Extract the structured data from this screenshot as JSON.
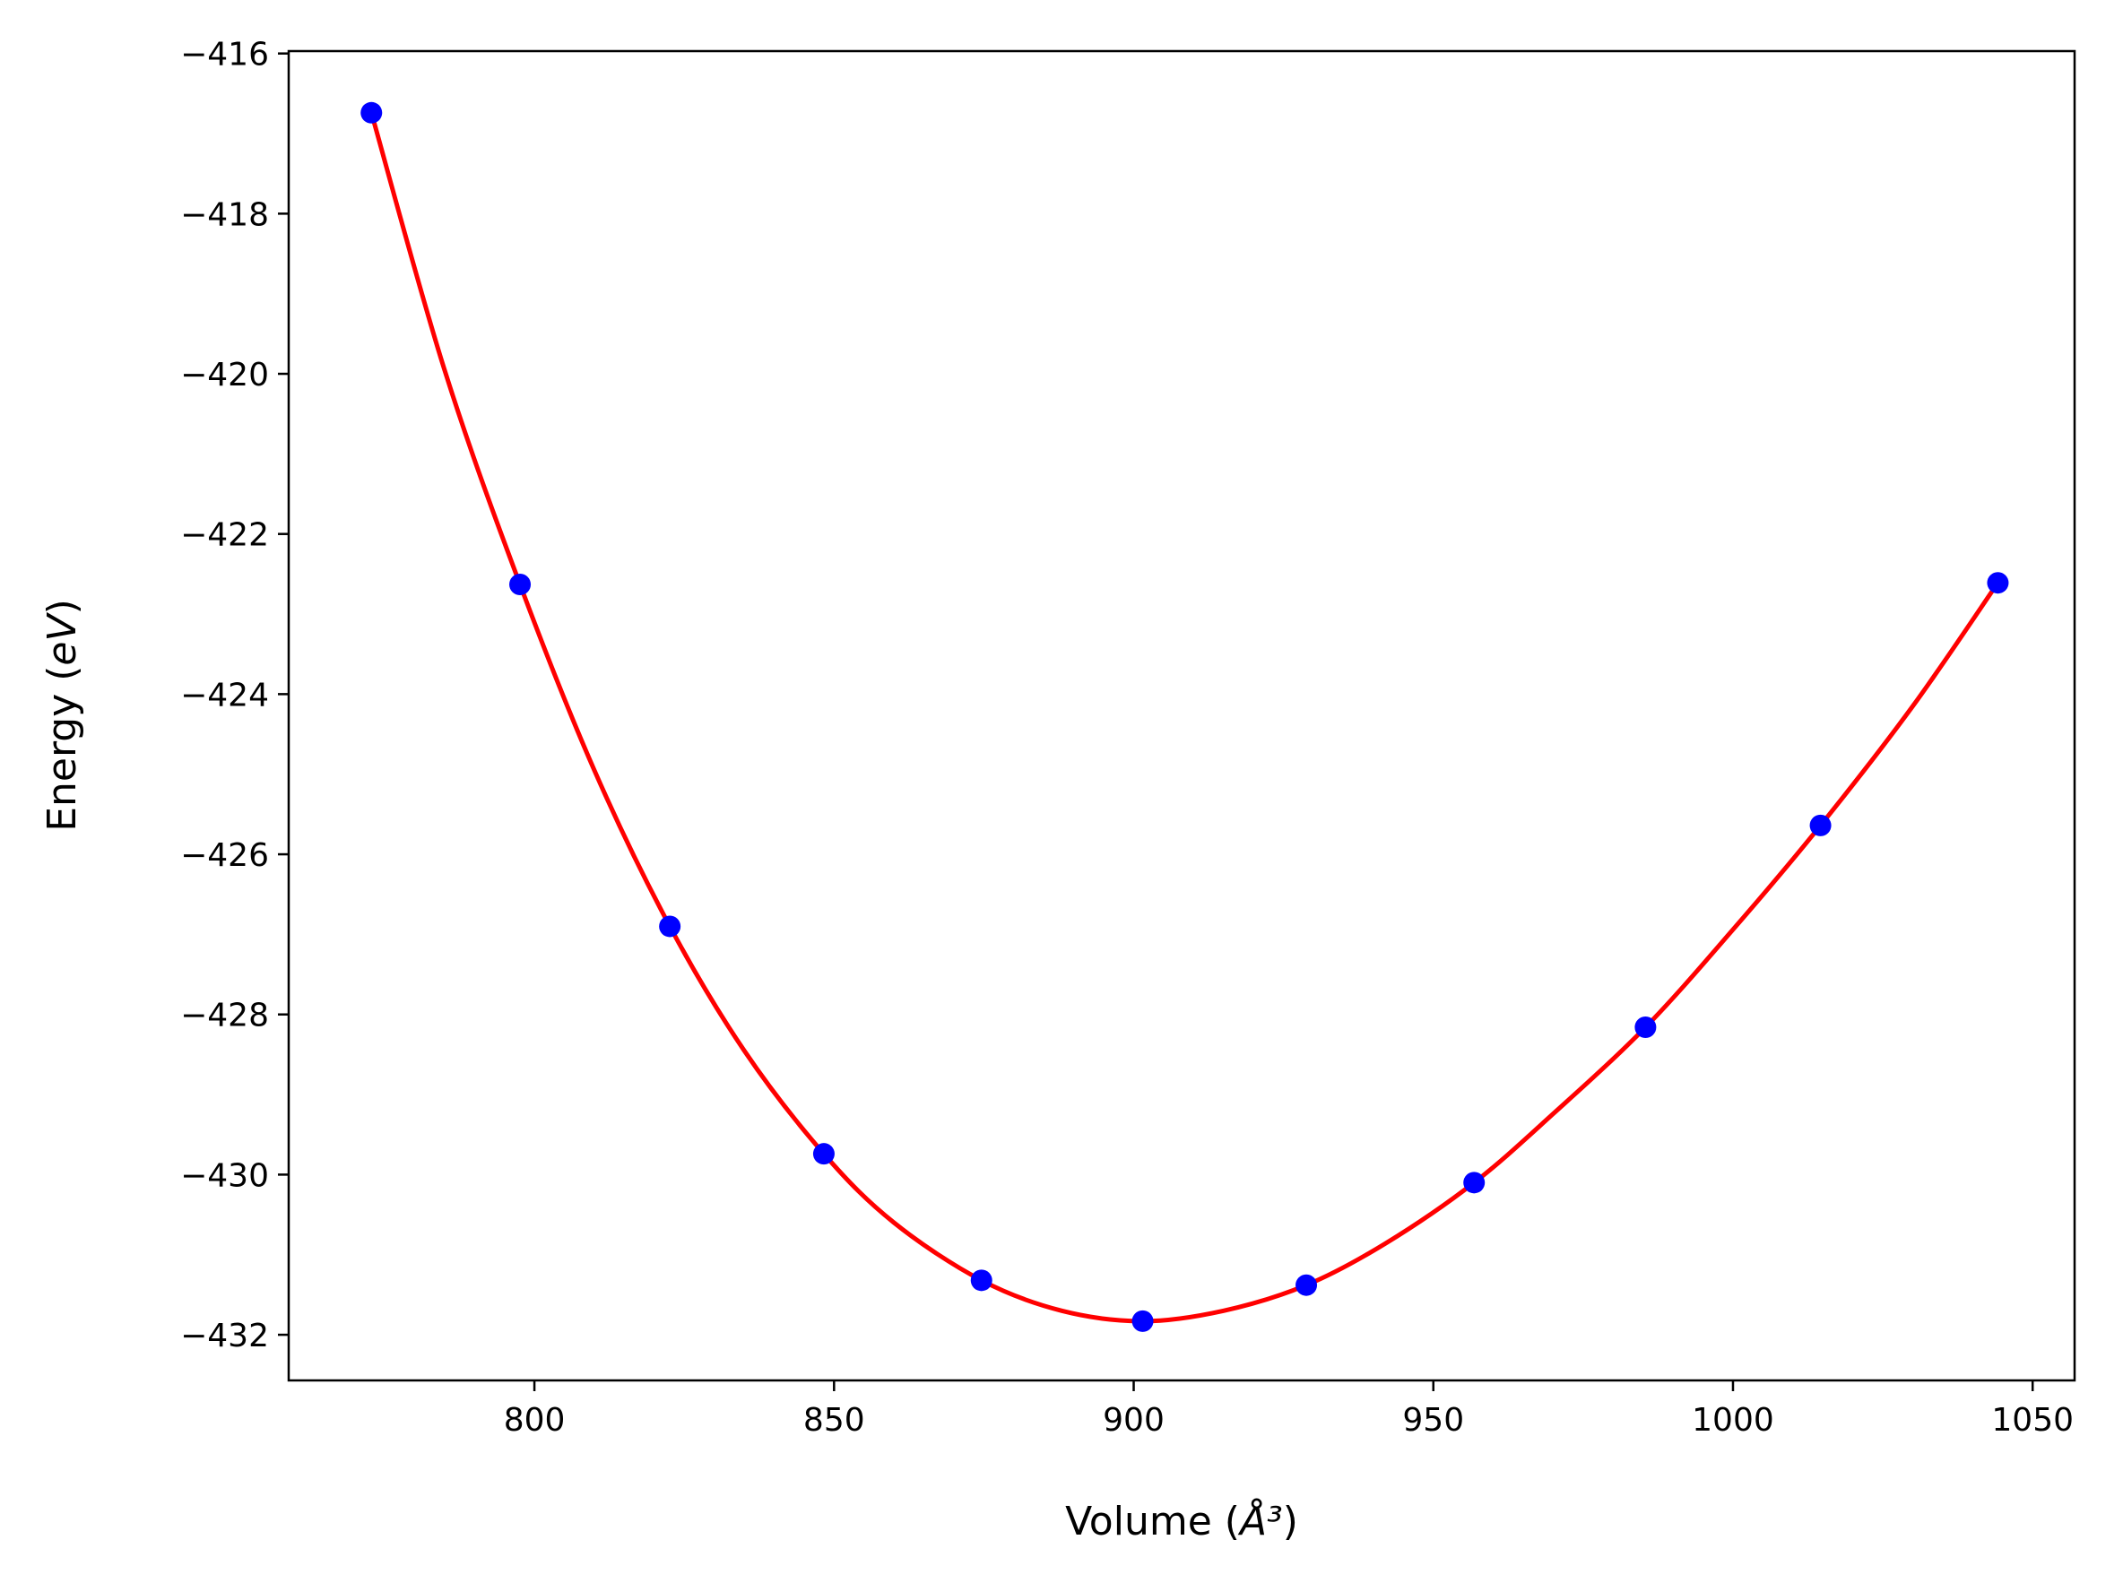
{
  "chart_data": {
    "type": "scatter",
    "title": "",
    "xlabel": "Volume (Å³)",
    "ylabel": "Energy (eV)",
    "xlim": [
      759,
      1057
    ],
    "ylim": [
      -432.57,
      -415.97
    ],
    "x_ticks": [
      800,
      850,
      900,
      950,
      1000,
      1050
    ],
    "x_tick_labels": [
      "800",
      "850",
      "900",
      "950",
      "1000",
      "1050"
    ],
    "y_ticks": [
      -432,
      -430,
      -428,
      -426,
      -424,
      -422,
      -420,
      -418,
      -416
    ],
    "y_tick_labels": [
      "−432",
      "−430",
      "−428",
      "−426",
      "−424",
      "−422",
      "−420",
      "−418",
      "−416"
    ],
    "grid": false,
    "series": [
      {
        "kind": "points",
        "color": "#0000ff",
        "x": [
          772.8,
          797.6,
          822.6,
          848.3,
          874.6,
          901.5,
          928.8,
          956.8,
          985.4,
          1014.6,
          1044.2
        ],
        "y": [
          -416.74,
          -422.63,
          -426.9,
          -429.74,
          -431.32,
          -431.83,
          -431.38,
          -430.1,
          -428.16,
          -425.64,
          -422.61
        ]
      },
      {
        "kind": "fit-line",
        "color": "#ff0000",
        "x": [
          772.8,
          785,
          797.6,
          810,
          822.6,
          835,
          848.3,
          860,
          874.6,
          888,
          901.5,
          915,
          928.8,
          942,
          956.8,
          970,
          985.4,
          1000,
          1014.6,
          1030,
          1044.2
        ],
        "y": [
          -416.74,
          -419.95,
          -422.63,
          -424.95,
          -426.9,
          -428.45,
          -429.74,
          -430.6,
          -431.32,
          -431.7,
          -431.83,
          -431.7,
          -431.38,
          -430.86,
          -430.1,
          -429.24,
          -428.16,
          -426.94,
          -425.64,
          -424.15,
          -422.61
        ]
      }
    ]
  }
}
